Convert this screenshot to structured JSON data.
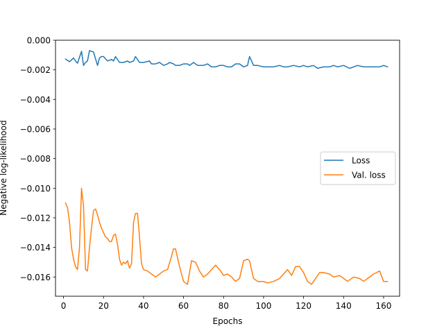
{
  "chart_data": {
    "type": "line",
    "xlabel": "Epochs",
    "ylabel": "Negative log-likelihood",
    "xlim": [
      -4,
      168
    ],
    "ylim": [
      -0.0173,
      0.0
    ],
    "xticks": [
      0,
      20,
      40,
      60,
      80,
      100,
      120,
      140,
      160
    ],
    "xtick_labels": [
      "0",
      "20",
      "40",
      "60",
      "80",
      "100",
      "120",
      "140",
      "160"
    ],
    "yticks": [
      0.0,
      -0.002,
      -0.004,
      -0.006,
      -0.008,
      -0.01,
      -0.012,
      -0.014,
      -0.016
    ],
    "ytick_labels": [
      "0.000",
      "−0.002",
      "−0.004",
      "−0.006",
      "−0.008",
      "−0.010",
      "−0.012",
      "−0.014",
      "−0.016"
    ],
    "grid": false,
    "legend_position": "center-right",
    "series": [
      {
        "name": "Loss",
        "color": "#1f77b4",
        "x": [
          1,
          3,
          5,
          6,
          7,
          9,
          10,
          11,
          12,
          13,
          15,
          17,
          18,
          19,
          20,
          22,
          24,
          25,
          26,
          28,
          30,
          32,
          33,
          35,
          36,
          38,
          40,
          43,
          44,
          46,
          48,
          50,
          52,
          53,
          55,
          56,
          58,
          60,
          62,
          63,
          65,
          67,
          70,
          72,
          74,
          76,
          78,
          80,
          82,
          84,
          86,
          88,
          90,
          92,
          93,
          95,
          97,
          100,
          102,
          105,
          108,
          110,
          112,
          115,
          118,
          120,
          122,
          125,
          127,
          130,
          133,
          135,
          137,
          140,
          143,
          145,
          147,
          150,
          153,
          155,
          158,
          160,
          162
        ],
        "y": [
          -0.00127,
          -0.00145,
          -0.0012,
          -0.0014,
          -0.00155,
          -0.00075,
          -0.0017,
          -0.0015,
          -0.0014,
          -0.0007,
          -0.0008,
          -0.0017,
          -0.0012,
          -0.0011,
          -0.0011,
          -0.0014,
          -0.0013,
          -0.0014,
          -0.0011,
          -0.0015,
          -0.0015,
          -0.0014,
          -0.0015,
          -0.0014,
          -0.0011,
          -0.0015,
          -0.0015,
          -0.0014,
          -0.0016,
          -0.0016,
          -0.0015,
          -0.0017,
          -0.0016,
          -0.0015,
          -0.0016,
          -0.0017,
          -0.0017,
          -0.0016,
          -0.0016,
          -0.0017,
          -0.0015,
          -0.0017,
          -0.0017,
          -0.0016,
          -0.0018,
          -0.0018,
          -0.0017,
          -0.0017,
          -0.0018,
          -0.0018,
          -0.0016,
          -0.0016,
          -0.0018,
          -0.0017,
          -0.0011,
          -0.0017,
          -0.0017,
          -0.0018,
          -0.0018,
          -0.0018,
          -0.0017,
          -0.0018,
          -0.0018,
          -0.0017,
          -0.0018,
          -0.0017,
          -0.0018,
          -0.0017,
          -0.0019,
          -0.0018,
          -0.0018,
          -0.0017,
          -0.0018,
          -0.0017,
          -0.0019,
          -0.0018,
          -0.0017,
          -0.0018,
          -0.0018,
          -0.0018,
          -0.0018,
          -0.0017,
          -0.0018
        ]
      },
      {
        "name": "Val. loss",
        "color": "#ff7f0e",
        "x": [
          1,
          2,
          3,
          4,
          5,
          6,
          7,
          8,
          9,
          10,
          11,
          12,
          13,
          14,
          15,
          16,
          17,
          18,
          19,
          20,
          21,
          22,
          23,
          24,
          25,
          26,
          27,
          28,
          29,
          30,
          31,
          32,
          33,
          34,
          35,
          36,
          37,
          38,
          39,
          40,
          42,
          44,
          46,
          48,
          50,
          52,
          54,
          55,
          56,
          58,
          60,
          62,
          64,
          66,
          68,
          70,
          72,
          74,
          76,
          78,
          80,
          82,
          84,
          86,
          88,
          90,
          92,
          93,
          95,
          97,
          100,
          102,
          105,
          108,
          110,
          112,
          114,
          116,
          118,
          120,
          122,
          124,
          126,
          128,
          130,
          133,
          135,
          138,
          140,
          142,
          145,
          148,
          150,
          152,
          155,
          158,
          160,
          162
        ],
        "y": [
          -0.011,
          -0.0113,
          -0.0123,
          -0.014,
          -0.0148,
          -0.0153,
          -0.0155,
          -0.014,
          -0.01,
          -0.0112,
          -0.0155,
          -0.0156,
          -0.014,
          -0.0127,
          -0.0115,
          -0.0114,
          -0.0118,
          -0.0123,
          -0.0127,
          -0.013,
          -0.0133,
          -0.0134,
          -0.0136,
          -0.0136,
          -0.0132,
          -0.0131,
          -0.0138,
          -0.0148,
          -0.0152,
          -0.015,
          -0.0151,
          -0.0149,
          -0.0154,
          -0.0151,
          -0.0123,
          -0.0117,
          -0.0117,
          -0.0133,
          -0.0151,
          -0.0155,
          -0.0156,
          -0.0158,
          -0.016,
          -0.0158,
          -0.0156,
          -0.0155,
          -0.0146,
          -0.0141,
          -0.0141,
          -0.0153,
          -0.0163,
          -0.0165,
          -0.0149,
          -0.015,
          -0.0156,
          -0.016,
          -0.0158,
          -0.0155,
          -0.0152,
          -0.0155,
          -0.0159,
          -0.0158,
          -0.016,
          -0.0163,
          -0.0161,
          -0.0149,
          -0.0148,
          -0.0149,
          -0.0161,
          -0.0163,
          -0.0163,
          -0.0164,
          -0.0163,
          -0.0161,
          -0.0158,
          -0.0155,
          -0.0159,
          -0.0153,
          -0.0153,
          -0.0157,
          -0.0163,
          -0.0165,
          -0.0161,
          -0.0157,
          -0.0157,
          -0.0158,
          -0.016,
          -0.0159,
          -0.0161,
          -0.0163,
          -0.016,
          -0.0161,
          -0.0163,
          -0.0161,
          -0.0158,
          -0.0156,
          -0.0163,
          -0.0163
        ]
      }
    ]
  }
}
